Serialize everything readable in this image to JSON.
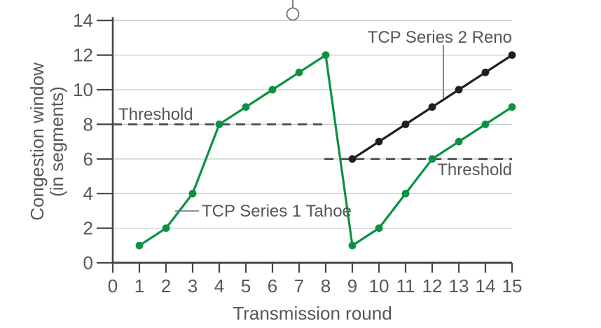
{
  "figure": {
    "background_color": "#ffffff",
    "text_color": "#56575a",
    "axis_color": "#454547",
    "gridline_color": "#c9cacb",
    "dashed_line_color": "#454547",
    "leader_line_color": "#6a6b6d",
    "decorations": {
      "balloon_marker": "circle-with-stem"
    }
  },
  "chart_data": {
    "type": "line",
    "title": "",
    "xlabel": "Transmission round",
    "ylabel": "Congestion window (in segments)",
    "ylabel_line1": "Congestion window",
    "ylabel_line2": "(in segments)",
    "xlim": [
      0,
      15
    ],
    "ylim": [
      0,
      14
    ],
    "x_ticks": [
      0,
      1,
      2,
      3,
      4,
      5,
      6,
      7,
      8,
      9,
      10,
      11,
      12,
      13,
      14,
      15
    ],
    "y_ticks": [
      0,
      2,
      4,
      6,
      8,
      10,
      12,
      14
    ],
    "grid": "horizontal-only",
    "legend_position": "none (inline labels with leader lines)",
    "series": [
      {
        "name": "TCP Series 1 Tahoe",
        "color": "#0a9144",
        "marker": "filled-circle",
        "x": [
          1,
          2,
          3,
          4,
          5,
          6,
          7,
          8,
          9,
          10,
          11,
          12,
          13,
          14,
          15
        ],
        "values": [
          1,
          2,
          4,
          8,
          9,
          10,
          11,
          12,
          1,
          2,
          4,
          6,
          7,
          8,
          9
        ]
      },
      {
        "name": "TCP Series 2 Reno",
        "color": "#1f1e1f",
        "marker": "filled-circle",
        "x": [
          9,
          10,
          11,
          12,
          13,
          14,
          15
        ],
        "values": [
          6,
          7,
          8,
          9,
          10,
          11,
          12
        ]
      }
    ],
    "threshold_lines": [
      {
        "label": "Threshold",
        "y": 8,
        "x_from": 0,
        "x_to": 8,
        "style": "dashed",
        "label_position": "above-left-of-line"
      },
      {
        "label": "Threshold",
        "y": 6,
        "x_from": 7.95,
        "x_to": 15,
        "style": "dashed",
        "label_position": "below-right-of-line"
      }
    ]
  }
}
